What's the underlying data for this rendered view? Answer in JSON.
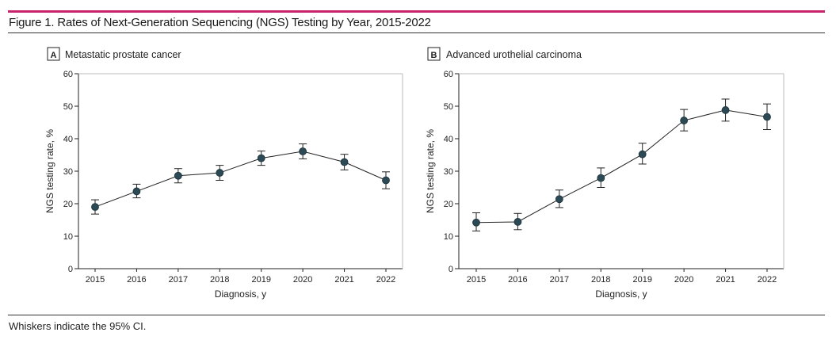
{
  "figure": {
    "title": "Figure 1. Rates of Next-Generation Sequencing (NGS) Testing by Year, 2015-2022",
    "footnote": "Whiskers indicate the 95% CI."
  },
  "colors": {
    "accent_rule": "#c8246b",
    "marker": "#2c4a55",
    "line": "#222222"
  },
  "chart_data": [
    {
      "type": "line",
      "panel_label": "A",
      "title": "Metastatic prostate cancer",
      "xlabel": "Diagnosis, y",
      "ylabel": "NGS testing rate, %",
      "ylim": [
        0,
        60
      ],
      "yticks": [
        0,
        10,
        20,
        30,
        40,
        50,
        60
      ],
      "x": [
        "2015",
        "2016",
        "2017",
        "2018",
        "2019",
        "2020",
        "2021",
        "2022"
      ],
      "values": [
        19,
        23.8,
        28.6,
        29.5,
        34,
        36.1,
        32.8,
        27.2
      ],
      "ci_lower": [
        16.8,
        21.8,
        26.4,
        27.2,
        31.8,
        33.8,
        30.4,
        24.6
      ],
      "ci_upper": [
        21.2,
        26,
        30.8,
        31.8,
        36.2,
        38.4,
        35.2,
        29.8
      ],
      "grid": false
    },
    {
      "type": "line",
      "panel_label": "B",
      "title": "Advanced urothelial carcinoma",
      "xlabel": "Diagnosis, y",
      "ylabel": "NGS testing rate, %",
      "ylim": [
        0,
        60
      ],
      "yticks": [
        0,
        10,
        20,
        30,
        40,
        50,
        60
      ],
      "x": [
        "2015",
        "2016",
        "2017",
        "2018",
        "2019",
        "2020",
        "2021",
        "2022"
      ],
      "values": [
        14.2,
        14.4,
        21.4,
        27.9,
        35.2,
        45.6,
        48.8,
        46.7
      ],
      "ci_lower": [
        11.6,
        12,
        18.8,
        25,
        32.2,
        42.4,
        45.4,
        42.8
      ],
      "ci_upper": [
        17.2,
        17,
        24.2,
        31,
        38.6,
        49,
        52.2,
        50.7
      ],
      "grid": false
    }
  ]
}
